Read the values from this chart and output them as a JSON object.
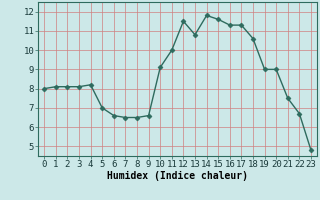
{
  "x": [
    0,
    1,
    2,
    3,
    4,
    5,
    6,
    7,
    8,
    9,
    10,
    11,
    12,
    13,
    14,
    15,
    16,
    17,
    18,
    19,
    20,
    21,
    22,
    23
  ],
  "y": [
    8.0,
    8.1,
    8.1,
    8.1,
    8.2,
    7.0,
    6.6,
    6.5,
    6.5,
    6.6,
    9.1,
    10.0,
    11.5,
    10.8,
    11.8,
    11.6,
    11.3,
    11.3,
    10.6,
    9.0,
    9.0,
    7.5,
    6.7,
    4.8
  ],
  "line_color": "#2e6b5e",
  "marker": "D",
  "marker_size": 2.5,
  "bg_color": "#cce8e8",
  "grid_color": "#d08080",
  "xlabel": "Humidex (Indice chaleur)",
  "xlabel_fontsize": 7,
  "tick_fontsize": 6.5,
  "ylim": [
    4.5,
    12.5
  ],
  "xlim": [
    -0.5,
    23.5
  ],
  "yticks": [
    5,
    6,
    7,
    8,
    9,
    10,
    11,
    12
  ],
  "xticks": [
    0,
    1,
    2,
    3,
    4,
    5,
    6,
    7,
    8,
    9,
    10,
    11,
    12,
    13,
    14,
    15,
    16,
    17,
    18,
    19,
    20,
    21,
    22,
    23
  ]
}
